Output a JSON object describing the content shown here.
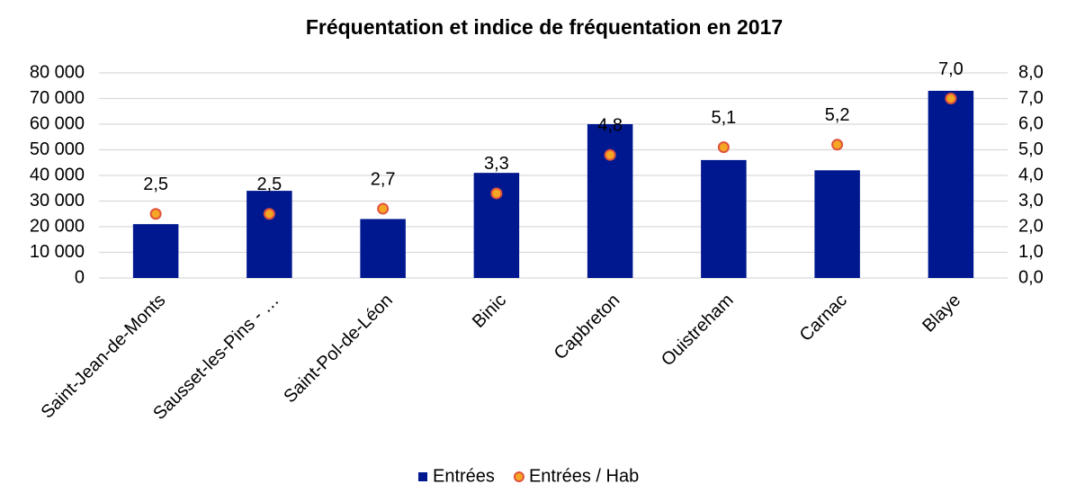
{
  "chart_data": {
    "type": "bar",
    "title": "Fréquentation et indice de fréquentation en 2017",
    "categories": [
      "Saint-Jean-de-Monts",
      "Sausset-les-Pins - …",
      "Saint-Pol-de-Léon",
      "Binic",
      "Capbreton",
      "Ouistreham",
      "Carnac",
      "Blaye"
    ],
    "series": [
      {
        "name": "Entrées",
        "type": "bar",
        "color": "#00188f",
        "values": [
          21000,
          34000,
          23000,
          41000,
          60000,
          46000,
          42000,
          73000
        ]
      },
      {
        "name": "Entrées / Hab",
        "type": "scatter",
        "axis": "y2",
        "color": "#f5a623",
        "edge": "#e0533d",
        "values": [
          2.5,
          2.5,
          2.7,
          3.3,
          4.8,
          5.1,
          5.2,
          7.0
        ],
        "value_labels": [
          "2,5",
          "2,5",
          "2,7",
          "3,3",
          "4,8",
          "5,1",
          "5,2",
          "7,0"
        ]
      }
    ],
    "ylim": [
      0,
      80000
    ],
    "yticks": [
      0,
      {
        "value": 10000,
        "label": "10 000"
      },
      {
        "value": 20000,
        "label": "20 000"
      },
      {
        "value": 30000,
        "label": "30 000"
      },
      {
        "value": 40000,
        "label": "40 000"
      },
      {
        "value": 50000,
        "label": "50 000"
      },
      {
        "value": 60000,
        "label": "60 000"
      },
      {
        "value": 70000,
        "label": "70 000"
      },
      {
        "value": 80000,
        "label": "80 000"
      }
    ],
    "y2lim": [
      0,
      8
    ],
    "y2ticks": [
      {
        "value": 0,
        "label": "0,0"
      },
      {
        "value": 1,
        "label": "1,0"
      },
      {
        "value": 2,
        "label": "2,0"
      },
      {
        "value": 3,
        "label": "3,0"
      },
      {
        "value": 4,
        "label": "4,0"
      },
      {
        "value": 5,
        "label": "5,0"
      },
      {
        "value": 6,
        "label": "6,0"
      },
      {
        "value": 7,
        "label": "7,0"
      },
      {
        "value": 8,
        "label": "8,0"
      }
    ],
    "grid": true,
    "legend": "bottom"
  }
}
